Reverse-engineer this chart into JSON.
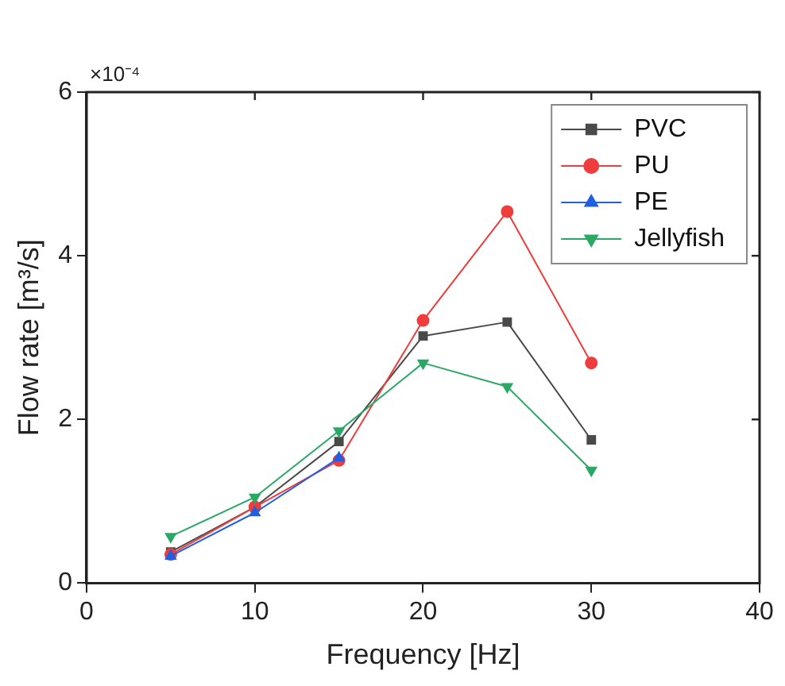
{
  "chart_data": {
    "type": "line",
    "xlabel": "Frequency [Hz]",
    "ylabel": "Flow rate [m³/s]",
    "annotations": [
      "×10⁻⁴"
    ],
    "x": [
      5,
      10,
      15,
      20,
      25,
      30
    ],
    "xlim": [
      0,
      40
    ],
    "xticks": [
      0,
      10,
      20,
      30,
      40
    ],
    "ylim": [
      0,
      6
    ],
    "yticks": [
      0,
      2,
      4,
      6
    ],
    "grid": false,
    "legend": "top right",
    "line_style": "solid",
    "series": [
      {
        "name": "PVC",
        "color": "#4a4a4a",
        "marker": "square",
        "values": [
          0.38,
          0.93,
          1.73,
          3.02,
          3.19,
          1.75
        ]
      },
      {
        "name": "PU",
        "color": "#f03c3c",
        "marker": "circle",
        "values": [
          0.35,
          0.93,
          1.5,
          3.21,
          4.54,
          2.69
        ]
      },
      {
        "name": "PE",
        "color": "#1f5fe0",
        "marker": "triangle",
        "values": [
          0.33,
          0.86,
          1.53,
          null,
          null,
          null
        ]
      },
      {
        "name": "Jellyfish",
        "color": "#2aa865",
        "marker": "triangle_down",
        "values": [
          0.57,
          1.05,
          1.86,
          2.69,
          2.4,
          1.38
        ]
      }
    ]
  }
}
